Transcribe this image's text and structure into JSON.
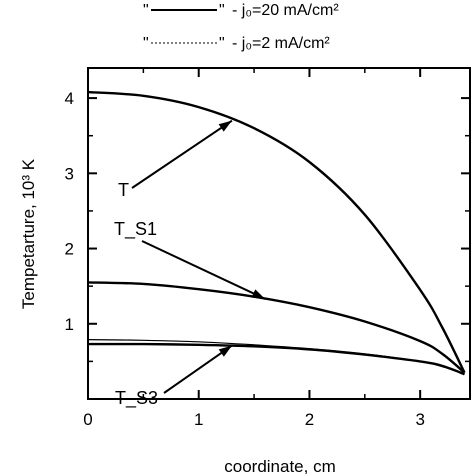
{
  "chart_data": {
    "type": "line",
    "xlabel": "coordinate, cm",
    "ylabel": "Tempetarture, 10³ K",
    "xlim": [
      0,
      3.45
    ],
    "ylim": [
      0,
      4.4
    ],
    "x_ticks": [
      "0",
      "1",
      "2",
      "3"
    ],
    "y_ticks": [
      "1",
      "2",
      "3",
      "4"
    ],
    "grid": false,
    "legend_position": "top",
    "legend": [
      {
        "sample": "\"",
        "sample_end": "\"",
        "text": "- j₀=20 mA/cm²",
        "style": "solid"
      },
      {
        "sample": "\"",
        "sample_end": "\"",
        "text": "- j₀=2 mA/cm²",
        "style": "dashed"
      }
    ],
    "series": [
      {
        "name": "T",
        "style": "solid",
        "x": [
          0,
          0.5,
          1.0,
          1.5,
          2.0,
          2.5,
          3.0,
          3.2,
          3.4
        ],
        "y": [
          4.08,
          4.03,
          3.88,
          3.6,
          3.15,
          2.45,
          1.45,
          0.95,
          0.35
        ]
      },
      {
        "name": "T_S1",
        "style": "solid",
        "x": [
          0,
          0.5,
          1.0,
          1.5,
          2.0,
          2.5,
          3.0,
          3.2,
          3.4
        ],
        "y": [
          1.55,
          1.53,
          1.46,
          1.36,
          1.22,
          1.03,
          0.77,
          0.6,
          0.35
        ]
      },
      {
        "name": "T_S3",
        "style": "solid",
        "x": [
          0,
          0.5,
          1.0,
          1.5,
          2.0,
          2.5,
          3.0,
          3.2,
          3.4
        ],
        "y": [
          0.73,
          0.73,
          0.72,
          0.7,
          0.66,
          0.59,
          0.5,
          0.44,
          0.33
        ]
      },
      {
        "name": "",
        "style": "thin",
        "x": [
          0,
          0.5,
          1.0,
          1.5,
          2.0,
          2.5,
          3.0,
          3.2,
          3.4
        ],
        "y": [
          0.79,
          0.78,
          0.76,
          0.72,
          0.67,
          0.6,
          0.5,
          0.43,
          0.33
        ]
      }
    ],
    "annotations": [
      {
        "text": "T",
        "target": {
          "x": 1.3,
          "y": 3.7
        }
      },
      {
        "text": "T_S1",
        "target": {
          "x": 1.6,
          "y": 1.33
        }
      },
      {
        "text": "T_S3",
        "target": {
          "x": 1.3,
          "y": 0.71
        }
      }
    ]
  }
}
